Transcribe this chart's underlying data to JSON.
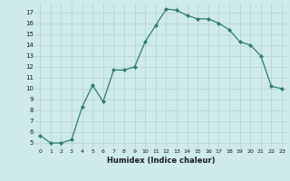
{
  "x": [
    0,
    1,
    2,
    3,
    4,
    5,
    6,
    7,
    8,
    9,
    10,
    11,
    12,
    13,
    14,
    15,
    16,
    17,
    18,
    19,
    20,
    21,
    22,
    23
  ],
  "y": [
    5.7,
    5.0,
    5.0,
    5.3,
    8.3,
    10.3,
    8.8,
    11.7,
    11.7,
    12.0,
    14.3,
    15.8,
    17.3,
    17.2,
    16.7,
    16.4,
    16.4,
    16.0,
    15.4,
    14.3,
    14.0,
    13.0,
    10.2,
    10.0
  ],
  "line_color": "#2e7d6e",
  "marker": "D",
  "marker_size": 2.0,
  "xlabel": "Humidex (Indice chaleur)",
  "bg_color": "#ceeaea",
  "grid_color": "#b8d4d4",
  "xlim": [
    -0.5,
    23.5
  ],
  "ylim": [
    4.5,
    17.8
  ],
  "xtick_labels": [
    "0",
    "1",
    "2",
    "3",
    "4",
    "5",
    "6",
    "7",
    "8",
    "9",
    "10",
    "11",
    "12",
    "13",
    "14",
    "15",
    "16",
    "17",
    "18",
    "19",
    "20",
    "21",
    "22",
    "23"
  ],
  "ytick_values": [
    5,
    6,
    7,
    8,
    9,
    10,
    11,
    12,
    13,
    14,
    15,
    16,
    17
  ]
}
